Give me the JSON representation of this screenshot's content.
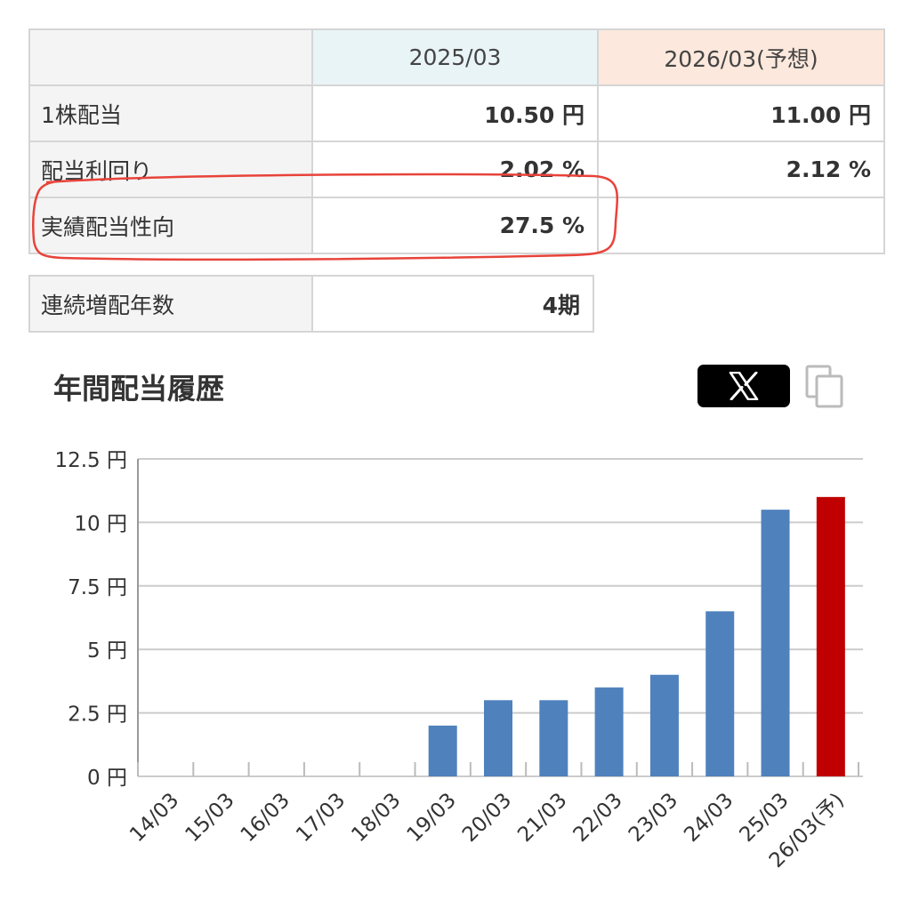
{
  "dividend_table": {
    "headers": [
      "",
      "2025/03",
      "2026/03(予想)"
    ],
    "header_colors": [
      "#f4f4f4",
      "#e9f4f7",
      "#fce8dc"
    ],
    "rows": [
      {
        "label": "1株配当",
        "v2025": "10.50 円",
        "v2026": "11.00 円"
      },
      {
        "label": "配当利回り",
        "v2025": "2.02 %",
        "v2026": "2.12 %"
      },
      {
        "label": "実績配当性向",
        "v2025": "27.5 %",
        "v2026": ""
      }
    ]
  },
  "streak": {
    "label": "連続増配年数",
    "value": "4期"
  },
  "history": {
    "title": "年間配当履歴",
    "share_icon": "x-logo-icon",
    "copy_icon": "copy-icon"
  },
  "colors": {
    "bar": "#4f81bd",
    "forecast_bar": "#c00000",
    "highlight": "#e8433a",
    "grid": "#cccccc"
  },
  "chart_data": {
    "type": "bar",
    "categories": [
      "14/03",
      "15/03",
      "16/03",
      "17/03",
      "18/03",
      "19/03",
      "20/03",
      "21/03",
      "22/03",
      "23/03",
      "24/03",
      "25/03",
      "26/03(予)"
    ],
    "values": [
      0,
      0,
      0,
      0,
      0,
      2,
      3,
      3,
      3.5,
      4,
      6.5,
      10.5,
      11
    ],
    "forecast_index": 12,
    "y_ticks": [
      "0 円",
      "2.5 円",
      "5 円",
      "7.5 円",
      "10 円",
      "12.5 円"
    ],
    "y_tick_values": [
      0,
      2.5,
      5,
      7.5,
      10,
      12.5
    ],
    "ylim": [
      0,
      12.5
    ],
    "grid": true,
    "legend": false
  }
}
